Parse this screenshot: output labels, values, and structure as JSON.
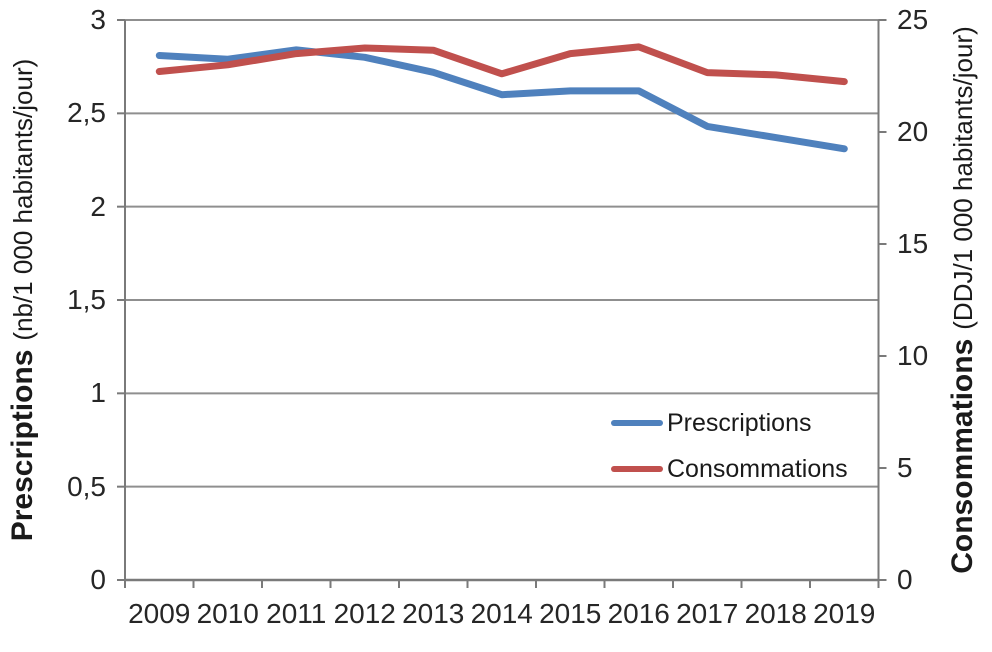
{
  "chart_data": {
    "type": "line",
    "title": "",
    "categories": [
      "2009",
      "2010",
      "2011",
      "2012",
      "2013",
      "2014",
      "2015",
      "2016",
      "2017",
      "2018",
      "2019"
    ],
    "series": [
      {
        "name": "Prescriptions",
        "axis": "left",
        "color": "#4F81BD",
        "values": [
          2.81,
          2.79,
          2.84,
          2.8,
          2.72,
          2.6,
          2.62,
          2.62,
          2.43,
          2.37,
          2.31
        ]
      },
      {
        "name": "Consommations",
        "axis": "right",
        "color": "#C0504D",
        "values": [
          22.7,
          23.0,
          23.5,
          23.75,
          23.65,
          22.6,
          23.5,
          23.8,
          22.65,
          22.55,
          22.25
        ]
      }
    ],
    "left_axis": {
      "title_bold": "Prescriptions",
      "title_unit": "(nb/1 000 habitants/jour)",
      "min": 0,
      "max": 3,
      "tick_values": [
        0,
        0.5,
        1,
        1.5,
        2,
        2.5,
        3
      ],
      "tick_labels": [
        "0",
        "0,5",
        "1",
        "1,5",
        "2",
        "2,5",
        "3"
      ]
    },
    "right_axis": {
      "title_bold": "Consommations",
      "title_unit": "(DDJ/1 000 habitants/jour)",
      "min": 0,
      "max": 25,
      "tick_values": [
        0,
        5,
        10,
        15,
        20,
        25
      ],
      "tick_labels": [
        "0",
        "5",
        "10",
        "15",
        "20",
        "25"
      ]
    },
    "grid": "horizontal",
    "legend_position": "inside-right",
    "colors": {
      "axis": "#7a7a7a",
      "gridline": "#8f8f8f",
      "text": "#262626"
    }
  }
}
